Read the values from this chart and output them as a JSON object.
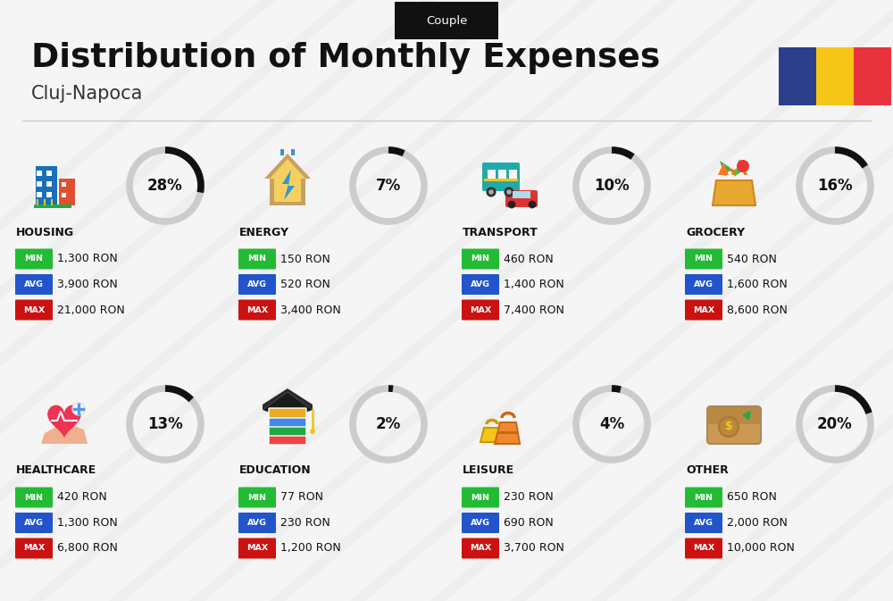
{
  "title": "Distribution of Monthly Expenses",
  "subtitle": "Cluj-Napoca",
  "tag": "Couple",
  "bg_color": "#f5f5f5",
  "categories": [
    {
      "name": "HOUSING",
      "pct": 28,
      "min": "1,300 RON",
      "avg": "3,900 RON",
      "max": "21,000 RON",
      "col": 0,
      "row": 0
    },
    {
      "name": "ENERGY",
      "pct": 7,
      "min": "150 RON",
      "avg": "520 RON",
      "max": "3,400 RON",
      "col": 1,
      "row": 0
    },
    {
      "name": "TRANSPORT",
      "pct": 10,
      "min": "460 RON",
      "avg": "1,400 RON",
      "max": "7,400 RON",
      "col": 2,
      "row": 0
    },
    {
      "name": "GROCERY",
      "pct": 16,
      "min": "540 RON",
      "avg": "1,600 RON",
      "max": "8,600 RON",
      "col": 3,
      "row": 0
    },
    {
      "name": "HEALTHCARE",
      "pct": 13,
      "min": "420 RON",
      "avg": "1,300 RON",
      "max": "6,800 RON",
      "col": 0,
      "row": 1
    },
    {
      "name": "EDUCATION",
      "pct": 2,
      "min": "77 RON",
      "avg": "230 RON",
      "max": "1,200 RON",
      "col": 1,
      "row": 1
    },
    {
      "name": "LEISURE",
      "pct": 4,
      "min": "230 RON",
      "avg": "690 RON",
      "max": "3,700 RON",
      "col": 2,
      "row": 1
    },
    {
      "name": "OTHER",
      "pct": 20,
      "min": "650 RON",
      "avg": "2,000 RON",
      "max": "10,000 RON",
      "col": 3,
      "row": 1
    }
  ],
  "color_min": "#22bb33",
  "color_avg": "#2255cc",
  "color_max": "#cc1111",
  "color_circle_filled": "#111111",
  "color_circle_empty": "#cccccc",
  "romania_colors": [
    "#2C3E8C",
    "#F5C518",
    "#E8333C"
  ],
  "shadow_color": "#e0e0e0",
  "divider_color": "#cccccc"
}
